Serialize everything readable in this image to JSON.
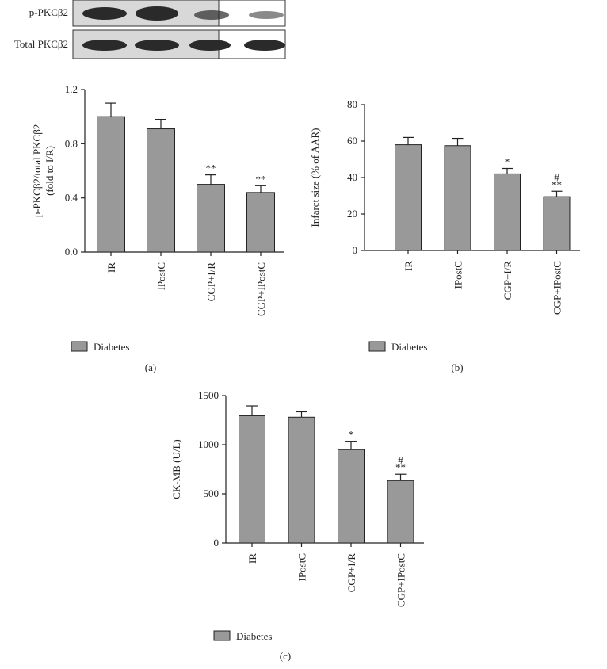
{
  "blot": {
    "rows": [
      "p-PKCβ2",
      "Total PKCβ2"
    ]
  },
  "chart_data": [
    {
      "type": "bar",
      "panel": "(a)",
      "ylabel": [
        "p-PKCβ2/total PKCβ2",
        "(fold to I/R)"
      ],
      "categories": [
        "IR",
        "IPostC",
        "CGP+I/R",
        "CGP+IPostC"
      ],
      "series": [
        {
          "name": "Diabetes",
          "color": "#999999",
          "values": [
            1.0,
            0.91,
            0.5,
            0.44
          ],
          "errors": [
            0.1,
            0.07,
            0.07,
            0.05
          ]
        }
      ],
      "annotations": [
        null,
        null,
        [
          "**"
        ],
        [
          "**"
        ]
      ],
      "ylim": [
        0,
        1.2
      ],
      "yticks": [
        {
          "value": 0,
          "label": "0.0"
        },
        0.4,
        0.8,
        1.2
      ]
    },
    {
      "type": "bar",
      "panel": "(b)",
      "ylabel": [
        "Infarct size (% of AAR)"
      ],
      "categories": [
        "IR",
        "IPostC",
        "CGP+I/R",
        "CGP+IPostC"
      ],
      "series": [
        {
          "name": "Diabetes",
          "color": "#999999",
          "values": [
            58,
            57.5,
            42,
            29.5
          ],
          "errors": [
            4,
            4,
            3,
            3
          ]
        }
      ],
      "annotations": [
        null,
        null,
        [
          "*"
        ],
        [
          "#",
          "**"
        ]
      ],
      "ylim": [
        0,
        80
      ],
      "yticks": [
        0,
        20,
        40,
        60,
        80
      ]
    },
    {
      "type": "bar",
      "panel": "(c)",
      "ylabel": [
        "CK-MB (U/L)"
      ],
      "categories": [
        "IR",
        "IPostC",
        "CGP+I/R",
        "CGP+IPostC"
      ],
      "series": [
        {
          "name": "Diabetes",
          "color": "#999999",
          "values": [
            1295,
            1280,
            950,
            635
          ],
          "errors": [
            100,
            55,
            85,
            65
          ]
        }
      ],
      "annotations": [
        null,
        null,
        [
          "*"
        ],
        [
          "#",
          "**"
        ]
      ],
      "ylim": [
        0,
        1500
      ],
      "yticks": [
        0,
        500,
        1000,
        1500
      ]
    }
  ]
}
